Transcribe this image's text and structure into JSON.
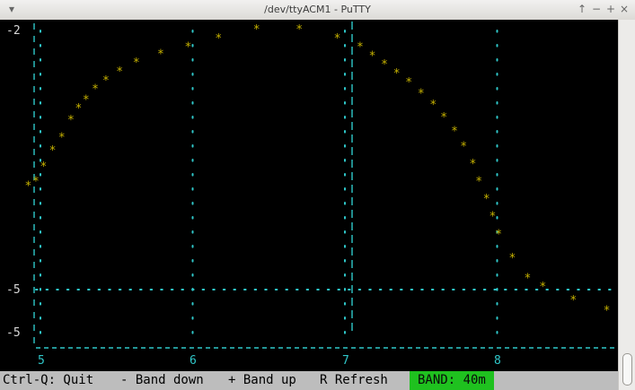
{
  "window": {
    "title": "/dev/ttyACM1 - PuTTY",
    "menu_glyph": "▾",
    "controls": [
      "↑",
      "−",
      "+",
      "×"
    ]
  },
  "chart_data": {
    "type": "scatter",
    "y_tick_labels": [
      "-2",
      "-5",
      "-5"
    ],
    "x_tick_labels": [
      "5",
      "6",
      "7",
      "8"
    ],
    "xlim": [
      4.9,
      8.78
    ],
    "x": [
      4.92,
      4.97,
      5.02,
      5.08,
      5.14,
      5.2,
      5.25,
      5.3,
      5.36,
      5.43,
      5.52,
      5.63,
      5.79,
      5.97,
      6.17,
      6.42,
      6.7,
      6.95,
      7.1,
      7.18,
      7.26,
      7.34,
      7.42,
      7.5,
      7.58,
      7.65,
      7.72,
      7.78,
      7.84,
      7.88,
      7.93,
      7.97,
      8.01,
      8.1,
      8.2,
      8.3,
      8.5,
      8.72
    ],
    "y": [
      -3.8,
      -3.75,
      -3.58,
      -3.4,
      -3.25,
      -3.05,
      -2.92,
      -2.82,
      -2.7,
      -2.6,
      -2.5,
      -2.4,
      -2.3,
      -2.22,
      -2.12,
      -2.02,
      -2.02,
      -2.12,
      -2.22,
      -2.32,
      -2.42,
      -2.52,
      -2.62,
      -2.75,
      -2.88,
      -3.02,
      -3.18,
      -3.35,
      -3.55,
      -3.75,
      -3.95,
      -4.15,
      -4.35,
      -4.62,
      -4.85,
      -4.95,
      -5.1,
      -5.22
    ],
    "grid_x": [
      5,
      6,
      7,
      8
    ],
    "grid_y": [
      -5
    ],
    "point_glyph": "*",
    "colors": {
      "points": "#c8b400",
      "grid": "#2fc7c9",
      "axis_text": "#d8d8d8"
    }
  },
  "status_bar": {
    "quit": "Ctrl-Q: Quit",
    "band_down": "- Band down",
    "band_up": "+ Band up",
    "refresh": "R Refresh",
    "band": "BAND: 40m"
  }
}
